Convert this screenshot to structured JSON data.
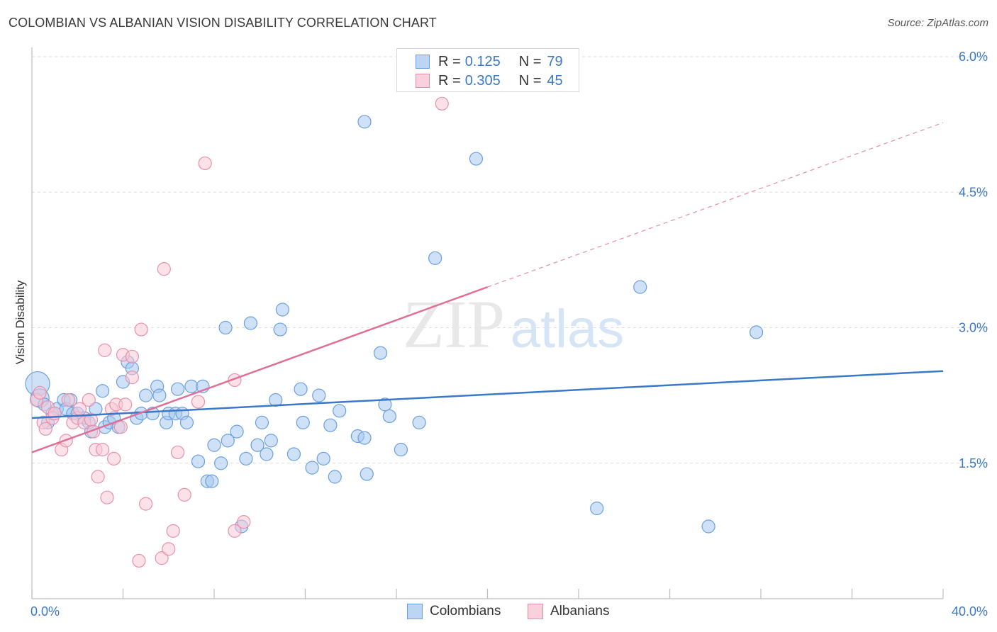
{
  "title": "COLOMBIAN VS ALBANIAN VISION DISABILITY CORRELATION CHART",
  "source": "Source: ZipAtlas.com",
  "watermark": {
    "zip": "ZIP",
    "atlas": "atlas"
  },
  "legend": {
    "rows": [
      {
        "r_label": "R =",
        "r_value": "0.125",
        "n_label": "N =",
        "n_value": "79",
        "color": "#a8c8f0",
        "border": "#6a9fde"
      },
      {
        "r_label": "R =",
        "r_value": "0.305",
        "n_label": "N =",
        "n_value": "45",
        "color": "#f8c8d6",
        "border": "#e890ab"
      }
    ]
  },
  "bottom_legend": {
    "colombians": "Colombians",
    "albanians": "Albanians"
  },
  "chart_data": {
    "type": "scatter",
    "title": "COLOMBIAN VS ALBANIAN VISION DISABILITY CORRELATION CHART",
    "xlabel": "",
    "ylabel": "Vision Disability",
    "xlim": [
      0,
      40
    ],
    "ylim": [
      0,
      6.25
    ],
    "x_tick_labels": [
      "0.0%",
      "40.0%"
    ],
    "y_ticks": [
      1.5,
      3.0,
      4.5,
      6.0
    ],
    "y_tick_labels": [
      "1.5%",
      "3.0%",
      "4.5%",
      "6.0%"
    ],
    "grid": "horizontal dashed",
    "legend_position": "top-center",
    "series": [
      {
        "name": "Colombians",
        "color": "#a8c8f0",
        "stroke": "#6a9fde",
        "trend": {
          "x": [
            0,
            40
          ],
          "y": [
            2.0,
            2.52
          ],
          "color": "#3a78c9"
        },
        "points": [
          [
            0.25,
            2.38
          ],
          [
            0.35,
            2.22
          ],
          [
            0.55,
            2.15
          ],
          [
            0.7,
            1.95
          ],
          [
            0.9,
            2.05
          ],
          [
            1.1,
            2.1
          ],
          [
            1.4,
            2.2
          ],
          [
            1.5,
            2.1
          ],
          [
            1.7,
            2.2
          ],
          [
            1.8,
            2.05
          ],
          [
            2.0,
            2.05
          ],
          [
            2.3,
            2.0
          ],
          [
            2.5,
            1.95
          ],
          [
            2.6,
            1.85
          ],
          [
            2.8,
            2.1
          ],
          [
            3.1,
            2.3
          ],
          [
            3.2,
            1.9
          ],
          [
            3.4,
            1.95
          ],
          [
            3.6,
            2.0
          ],
          [
            3.8,
            1.9
          ],
          [
            4.0,
            2.4
          ],
          [
            4.2,
            2.62
          ],
          [
            4.4,
            2.55
          ],
          [
            4.6,
            2.0
          ],
          [
            4.8,
            2.05
          ],
          [
            5.0,
            2.25
          ],
          [
            5.3,
            2.05
          ],
          [
            5.5,
            2.35
          ],
          [
            5.6,
            2.25
          ],
          [
            5.9,
            1.95
          ],
          [
            6.0,
            2.05
          ],
          [
            6.3,
            2.05
          ],
          [
            6.4,
            2.32
          ],
          [
            6.6,
            2.05
          ],
          [
            6.8,
            1.95
          ],
          [
            7.0,
            2.35
          ],
          [
            7.3,
            1.52
          ],
          [
            7.5,
            2.35
          ],
          [
            7.7,
            1.3
          ],
          [
            7.9,
            1.3
          ],
          [
            8.0,
            1.7
          ],
          [
            8.3,
            1.5
          ],
          [
            8.5,
            3.0
          ],
          [
            8.6,
            1.75
          ],
          [
            9.0,
            1.85
          ],
          [
            9.2,
            0.8
          ],
          [
            9.4,
            1.55
          ],
          [
            9.6,
            3.05
          ],
          [
            9.9,
            1.7
          ],
          [
            10.1,
            1.95
          ],
          [
            10.3,
            1.6
          ],
          [
            10.5,
            1.75
          ],
          [
            10.7,
            2.2
          ],
          [
            10.9,
            2.98
          ],
          [
            11.0,
            3.2
          ],
          [
            11.5,
            1.6
          ],
          [
            11.8,
            2.32
          ],
          [
            11.9,
            1.95
          ],
          [
            12.3,
            1.45
          ],
          [
            12.6,
            2.25
          ],
          [
            12.8,
            1.55
          ],
          [
            13.1,
            1.92
          ],
          [
            13.3,
            1.35
          ],
          [
            13.5,
            2.08
          ],
          [
            14.3,
            1.8
          ],
          [
            14.6,
            1.78
          ],
          [
            14.6,
            5.28
          ],
          [
            14.7,
            1.38
          ],
          [
            15.3,
            2.72
          ],
          [
            15.5,
            2.15
          ],
          [
            15.7,
            2.02
          ],
          [
            16.2,
            1.65
          ],
          [
            17.0,
            1.95
          ],
          [
            17.7,
            3.77
          ],
          [
            19.5,
            4.87
          ],
          [
            24.8,
            1.0
          ],
          [
            26.7,
            3.45
          ],
          [
            29.7,
            0.8
          ],
          [
            31.8,
            2.95
          ]
        ]
      },
      {
        "name": "Albanians",
        "color": "#f8c8d6",
        "stroke": "#e890ab",
        "trend": {
          "x": [
            0,
            20
          ],
          "y": [
            1.62,
            3.45
          ],
          "color": "#e06f97",
          "extend_x": 40,
          "extend_y": 5.27
        },
        "points": [
          [
            0.2,
            2.2
          ],
          [
            0.35,
            2.28
          ],
          [
            0.5,
            1.95
          ],
          [
            0.6,
            1.88
          ],
          [
            0.7,
            2.12
          ],
          [
            0.9,
            2.0
          ],
          [
            1.0,
            2.05
          ],
          [
            1.3,
            1.65
          ],
          [
            1.5,
            1.75
          ],
          [
            1.6,
            2.2
          ],
          [
            1.8,
            1.95
          ],
          [
            2.0,
            2.0
          ],
          [
            2.1,
            2.1
          ],
          [
            2.3,
            1.95
          ],
          [
            2.5,
            2.2
          ],
          [
            2.6,
            1.98
          ],
          [
            2.7,
            1.85
          ],
          [
            2.8,
            1.65
          ],
          [
            2.9,
            1.35
          ],
          [
            3.1,
            1.65
          ],
          [
            3.2,
            2.75
          ],
          [
            3.3,
            1.12
          ],
          [
            3.5,
            2.1
          ],
          [
            3.6,
            1.55
          ],
          [
            3.7,
            2.15
          ],
          [
            3.9,
            1.9
          ],
          [
            4.0,
            2.7
          ],
          [
            4.1,
            2.15
          ],
          [
            4.4,
            2.45
          ],
          [
            4.4,
            2.68
          ],
          [
            4.7,
            0.42
          ],
          [
            4.8,
            2.98
          ],
          [
            5.0,
            1.05
          ],
          [
            5.7,
            0.45
          ],
          [
            5.8,
            3.65
          ],
          [
            6.0,
            0.55
          ],
          [
            6.2,
            0.75
          ],
          [
            6.4,
            1.62
          ],
          [
            6.7,
            1.15
          ],
          [
            7.3,
            2.18
          ],
          [
            7.6,
            4.82
          ],
          [
            8.9,
            2.42
          ],
          [
            8.9,
            0.75
          ],
          [
            9.3,
            0.85
          ],
          [
            18.0,
            5.48
          ]
        ]
      }
    ]
  }
}
